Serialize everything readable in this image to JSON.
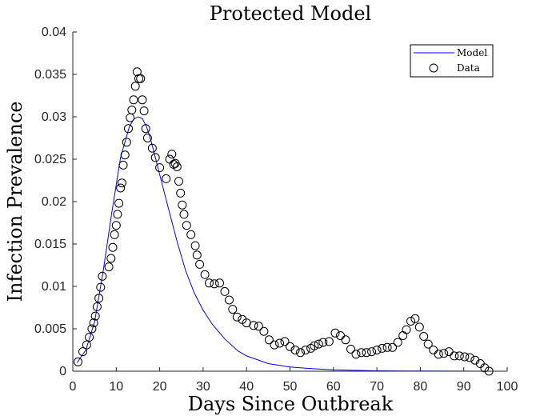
{
  "chart_data": {
    "type": "line",
    "title": "Protected Model",
    "xlabel": "Days Since Outbreak",
    "ylabel": "Infection Prevalence",
    "xlim": [
      0,
      100
    ],
    "ylim": [
      0,
      0.04
    ],
    "x_ticks": [
      "0",
      "10",
      "20",
      "30",
      "40",
      "50",
      "60",
      "70",
      "80",
      "90",
      "100"
    ],
    "y_ticks": [
      "0",
      "0.005",
      "0.01",
      "0.015",
      "0.02",
      "0.025",
      "0.03",
      "0.035",
      "0.04"
    ],
    "grid": false,
    "legend_position": "top-right",
    "colors": {
      "model": "#0000ff",
      "data": "#000000"
    },
    "series": [
      {
        "name": "Model",
        "style": "line",
        "x": [
          1,
          3,
          5,
          7,
          9,
          11,
          13,
          14,
          15,
          16,
          17,
          18,
          20,
          22,
          24,
          26,
          28,
          30,
          32,
          35,
          38,
          40,
          45,
          50,
          55,
          60,
          70,
          80,
          90,
          96
        ],
        "y": [
          0.001,
          0.0025,
          0.0058,
          0.0118,
          0.0188,
          0.0252,
          0.0288,
          0.0297,
          0.03,
          0.0298,
          0.0288,
          0.0272,
          0.0232,
          0.0192,
          0.0153,
          0.0118,
          0.0092,
          0.0072,
          0.0056,
          0.0038,
          0.0024,
          0.0018,
          0.0009,
          0.0005,
          0.0003,
          0.00015,
          5e-05,
          2e-05,
          1e-05,
          0.0
        ]
      },
      {
        "name": "Data",
        "style": "marker",
        "x": [
          1.2,
          2.3,
          3.2,
          3.8,
          4.4,
          4.8,
          5.2,
          5.6,
          6.0,
          6.4,
          6.8,
          8.3,
          8.8,
          9.2,
          9.6,
          10.0,
          10.3,
          10.6,
          11.0,
          11.3,
          11.6,
          12.0,
          12.4,
          12.8,
          13.2,
          13.6,
          14.0,
          14.4,
          14.8,
          15.2,
          15.6,
          16.0,
          16.4,
          16.8,
          17.2,
          18.3,
          19.0,
          20.0,
          21.5,
          22.3,
          22.8,
          23.2,
          23.6,
          24.0,
          24.4,
          24.8,
          25.2,
          25.6,
          26.2,
          27.2,
          28.2,
          28.6,
          29.2,
          30.4,
          31.4,
          32.6,
          33.8,
          35.0,
          36.0,
          36.8,
          37.8,
          39.0,
          40.0,
          41.6,
          42.8,
          44.0,
          45.2,
          46.4,
          47.6,
          48.8,
          50.0,
          51.2,
          52.4,
          53.6,
          54.8,
          55.6,
          56.6,
          57.6,
          59.0,
          60.4,
          61.6,
          62.8,
          64.0,
          65.2,
          66.4,
          67.6,
          68.8,
          70.0,
          71.2,
          72.4,
          73.6,
          74.8,
          76.0,
          76.8,
          77.8,
          78.8,
          79.8,
          80.8,
          81.8,
          83.0,
          84.2,
          85.4,
          86.6,
          87.8,
          89.0,
          90.2,
          91.4,
          92.6,
          93.8,
          94.8,
          95.8
        ],
        "y": [
          0.0011,
          0.0023,
          0.0031,
          0.004,
          0.005,
          0.0057,
          0.0065,
          0.0076,
          0.0086,
          0.0099,
          0.0112,
          0.0123,
          0.0133,
          0.0146,
          0.0161,
          0.0172,
          0.0185,
          0.0198,
          0.0216,
          0.0222,
          0.0243,
          0.0255,
          0.027,
          0.0286,
          0.0299,
          0.0308,
          0.032,
          0.0336,
          0.0353,
          0.0345,
          0.0345,
          0.032,
          0.0307,
          0.0286,
          0.0275,
          0.0263,
          0.0252,
          0.024,
          0.0227,
          0.025,
          0.0256,
          0.0244,
          0.0245,
          0.0241,
          0.0224,
          0.021,
          0.0196,
          0.0185,
          0.0172,
          0.0161,
          0.0148,
          0.0137,
          0.0126,
          0.0114,
          0.0104,
          0.0103,
          0.0104,
          0.0094,
          0.0084,
          0.0073,
          0.0064,
          0.0061,
          0.0057,
          0.0054,
          0.0053,
          0.0047,
          0.0037,
          0.0031,
          0.0033,
          0.0035,
          0.0029,
          0.0025,
          0.0022,
          0.0025,
          0.0027,
          0.003,
          0.0032,
          0.0034,
          0.0035,
          0.0045,
          0.0042,
          0.0037,
          0.0026,
          0.002,
          0.0022,
          0.0022,
          0.0023,
          0.0025,
          0.0027,
          0.0028,
          0.0028,
          0.0034,
          0.0042,
          0.0049,
          0.0059,
          0.0062,
          0.0052,
          0.0041,
          0.0032,
          0.0025,
          0.002,
          0.0021,
          0.0023,
          0.0018,
          0.0018,
          0.0017,
          0.0016,
          0.0013,
          0.0009,
          0.0004,
          0.0
        ]
      }
    ]
  }
}
